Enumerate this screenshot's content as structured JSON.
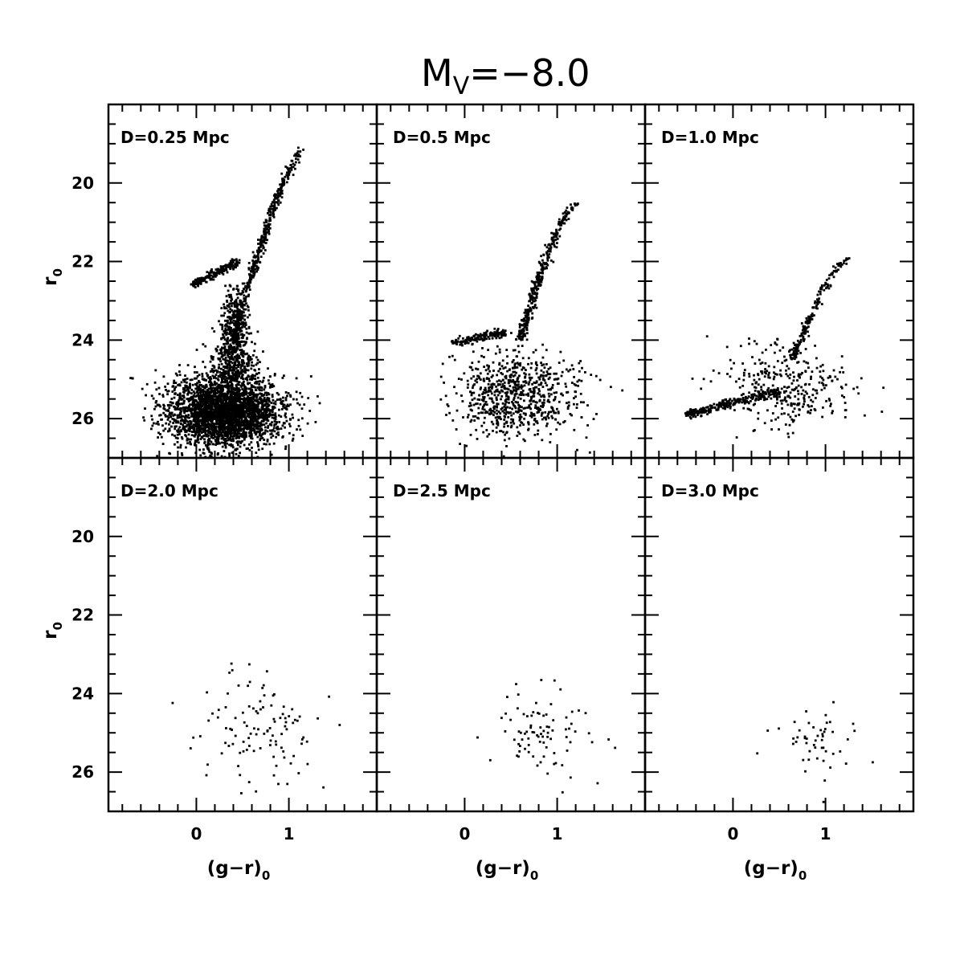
{
  "figure": {
    "title_main": "M",
    "title_sub": "V",
    "title_rest": "=−8.0",
    "ylabel_main": "r",
    "ylabel_sub": "0",
    "xlabel_main": "(g−r)",
    "xlabel_sub": "0"
  },
  "chart_data": [
    {
      "type": "scatter",
      "panel": "D=0.25 Mpc",
      "xlim": [
        -0.95,
        1.95
      ],
      "ylim": [
        27.0,
        18.0
      ],
      "xticks": [
        "0",
        "1"
      ],
      "yticks": [
        "20",
        "22",
        "24",
        "26"
      ],
      "features": [
        {
          "kind": "rgb",
          "x_base": 0.4,
          "x_tip": 1.2,
          "y_tip": 19.0,
          "y_base": 24.0,
          "count": 450
        },
        {
          "kind": "horizontal_branch",
          "x_start": -0.05,
          "x_end": 0.45,
          "y_start": 22.6,
          "y_end": 22.0,
          "count": 180
        },
        {
          "kind": "clump",
          "x_center": 0.3,
          "x_sigma": 0.3,
          "y_center": 25.8,
          "y_sigma": 0.45,
          "count": 3200
        },
        {
          "kind": "upper_tail",
          "x_center": 0.42,
          "x_sigma": 0.05,
          "y_min": 22.5,
          "y_max": 25.0,
          "count": 600
        }
      ]
    },
    {
      "type": "scatter",
      "panel": "D=0.5 Mpc",
      "xlim": [
        -0.95,
        1.95
      ],
      "ylim": [
        27.0,
        18.0
      ],
      "xticks": [
        "0",
        "1"
      ],
      "yticks": [
        "20",
        "22",
        "24",
        "26"
      ],
      "features": [
        {
          "kind": "rgb",
          "x_base": 0.6,
          "x_tip": 1.2,
          "y_tip": 20.5,
          "y_base": 24.0,
          "count": 320
        },
        {
          "kind": "horizontal_branch",
          "x_start": -0.15,
          "x_end": 0.45,
          "y_start": 24.1,
          "y_end": 23.8,
          "count": 150
        },
        {
          "kind": "clump",
          "x_center": 0.55,
          "x_sigma": 0.33,
          "y_center": 25.4,
          "y_sigma": 0.55,
          "count": 750
        }
      ]
    },
    {
      "type": "scatter",
      "panel": "D=1.0 Mpc",
      "xlim": [
        -0.95,
        1.95
      ],
      "ylim": [
        27.0,
        18.0
      ],
      "xticks": [
        "0",
        "1"
      ],
      "yticks": [
        "20",
        "22",
        "24",
        "26"
      ],
      "features": [
        {
          "kind": "rgb",
          "x_base": 0.65,
          "x_tip": 1.25,
          "y_tip": 21.9,
          "y_base": 24.5,
          "count": 180
        },
        {
          "kind": "horizontal_branch",
          "x_start": -0.5,
          "x_end": 0.5,
          "y_start": 25.9,
          "y_end": 25.3,
          "count": 260
        },
        {
          "kind": "clump",
          "x_center": 0.6,
          "x_sigma": 0.35,
          "y_center": 25.2,
          "y_sigma": 0.55,
          "count": 330
        }
      ]
    },
    {
      "type": "scatter",
      "panel": "D=2.0 Mpc",
      "xlim": [
        -0.95,
        1.95
      ],
      "ylim": [
        27.0,
        18.0
      ],
      "xticks": [
        "0",
        "1"
      ],
      "yticks": [
        "20",
        "22",
        "24",
        "26"
      ],
      "features": [
        {
          "kind": "clump",
          "x_center": 0.7,
          "x_sigma": 0.35,
          "y_center": 25.0,
          "y_sigma": 0.75,
          "count": 110
        }
      ]
    },
    {
      "type": "scatter",
      "panel": "D=2.5 Mpc",
      "xlim": [
        -0.95,
        1.95
      ],
      "ylim": [
        27.0,
        18.0
      ],
      "xticks": [
        "0",
        "1"
      ],
      "yticks": [
        "20",
        "22",
        "24",
        "26"
      ],
      "features": [
        {
          "kind": "clump",
          "x_center": 0.8,
          "x_sigma": 0.3,
          "y_center": 25.0,
          "y_sigma": 0.6,
          "count": 85
        }
      ]
    },
    {
      "type": "scatter",
      "panel": "D=3.0 Mpc",
      "xlim": [
        -0.95,
        1.95
      ],
      "ylim": [
        27.0,
        18.0
      ],
      "xticks": [
        "0",
        "1"
      ],
      "yticks": [
        "20",
        "22",
        "24",
        "26"
      ],
      "features": [
        {
          "kind": "clump",
          "x_center": 0.9,
          "x_sigma": 0.28,
          "y_center": 25.3,
          "y_sigma": 0.5,
          "count": 50
        }
      ]
    }
  ]
}
